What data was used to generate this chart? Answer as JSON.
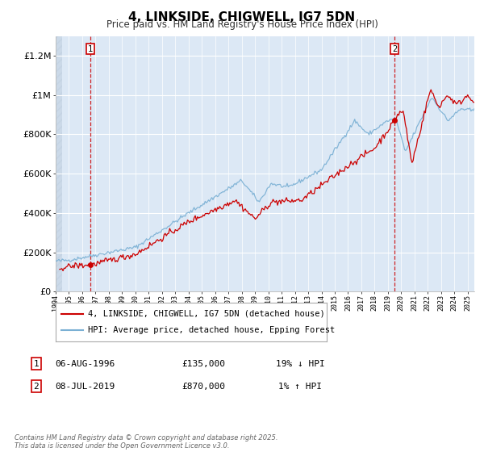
{
  "title": "4, LINKSIDE, CHIGWELL, IG7 5DN",
  "subtitle": "Price paid vs. HM Land Registry's House Price Index (HPI)",
  "title_fontsize": 11,
  "subtitle_fontsize": 8.5,
  "background_color": "#ffffff",
  "plot_bg_color": "#dce8f5",
  "grid_color": "#ffffff",
  "legend_label_red": "4, LINKSIDE, CHIGWELL, IG7 5DN (detached house)",
  "legend_label_blue": "HPI: Average price, detached house, Epping Forest",
  "annotation1_date": "06-AUG-1996",
  "annotation1_price": "£135,000",
  "annotation1_hpi": "19% ↓ HPI",
  "annotation2_date": "08-JUL-2019",
  "annotation2_price": "£870,000",
  "annotation2_hpi": "1% ↑ HPI",
  "footer": "Contains HM Land Registry data © Crown copyright and database right 2025.\nThis data is licensed under the Open Government Licence v3.0.",
  "ylim": [
    0,
    1300000
  ],
  "xlim_start": 1994.0,
  "xlim_end": 2025.5,
  "sale1_x": 1996.59,
  "sale1_y": 135000,
  "sale2_x": 2019.52,
  "sale2_y": 870000,
  "red_color": "#cc0000",
  "blue_color": "#7ab0d4",
  "hatch_color": "#c0cfe0"
}
